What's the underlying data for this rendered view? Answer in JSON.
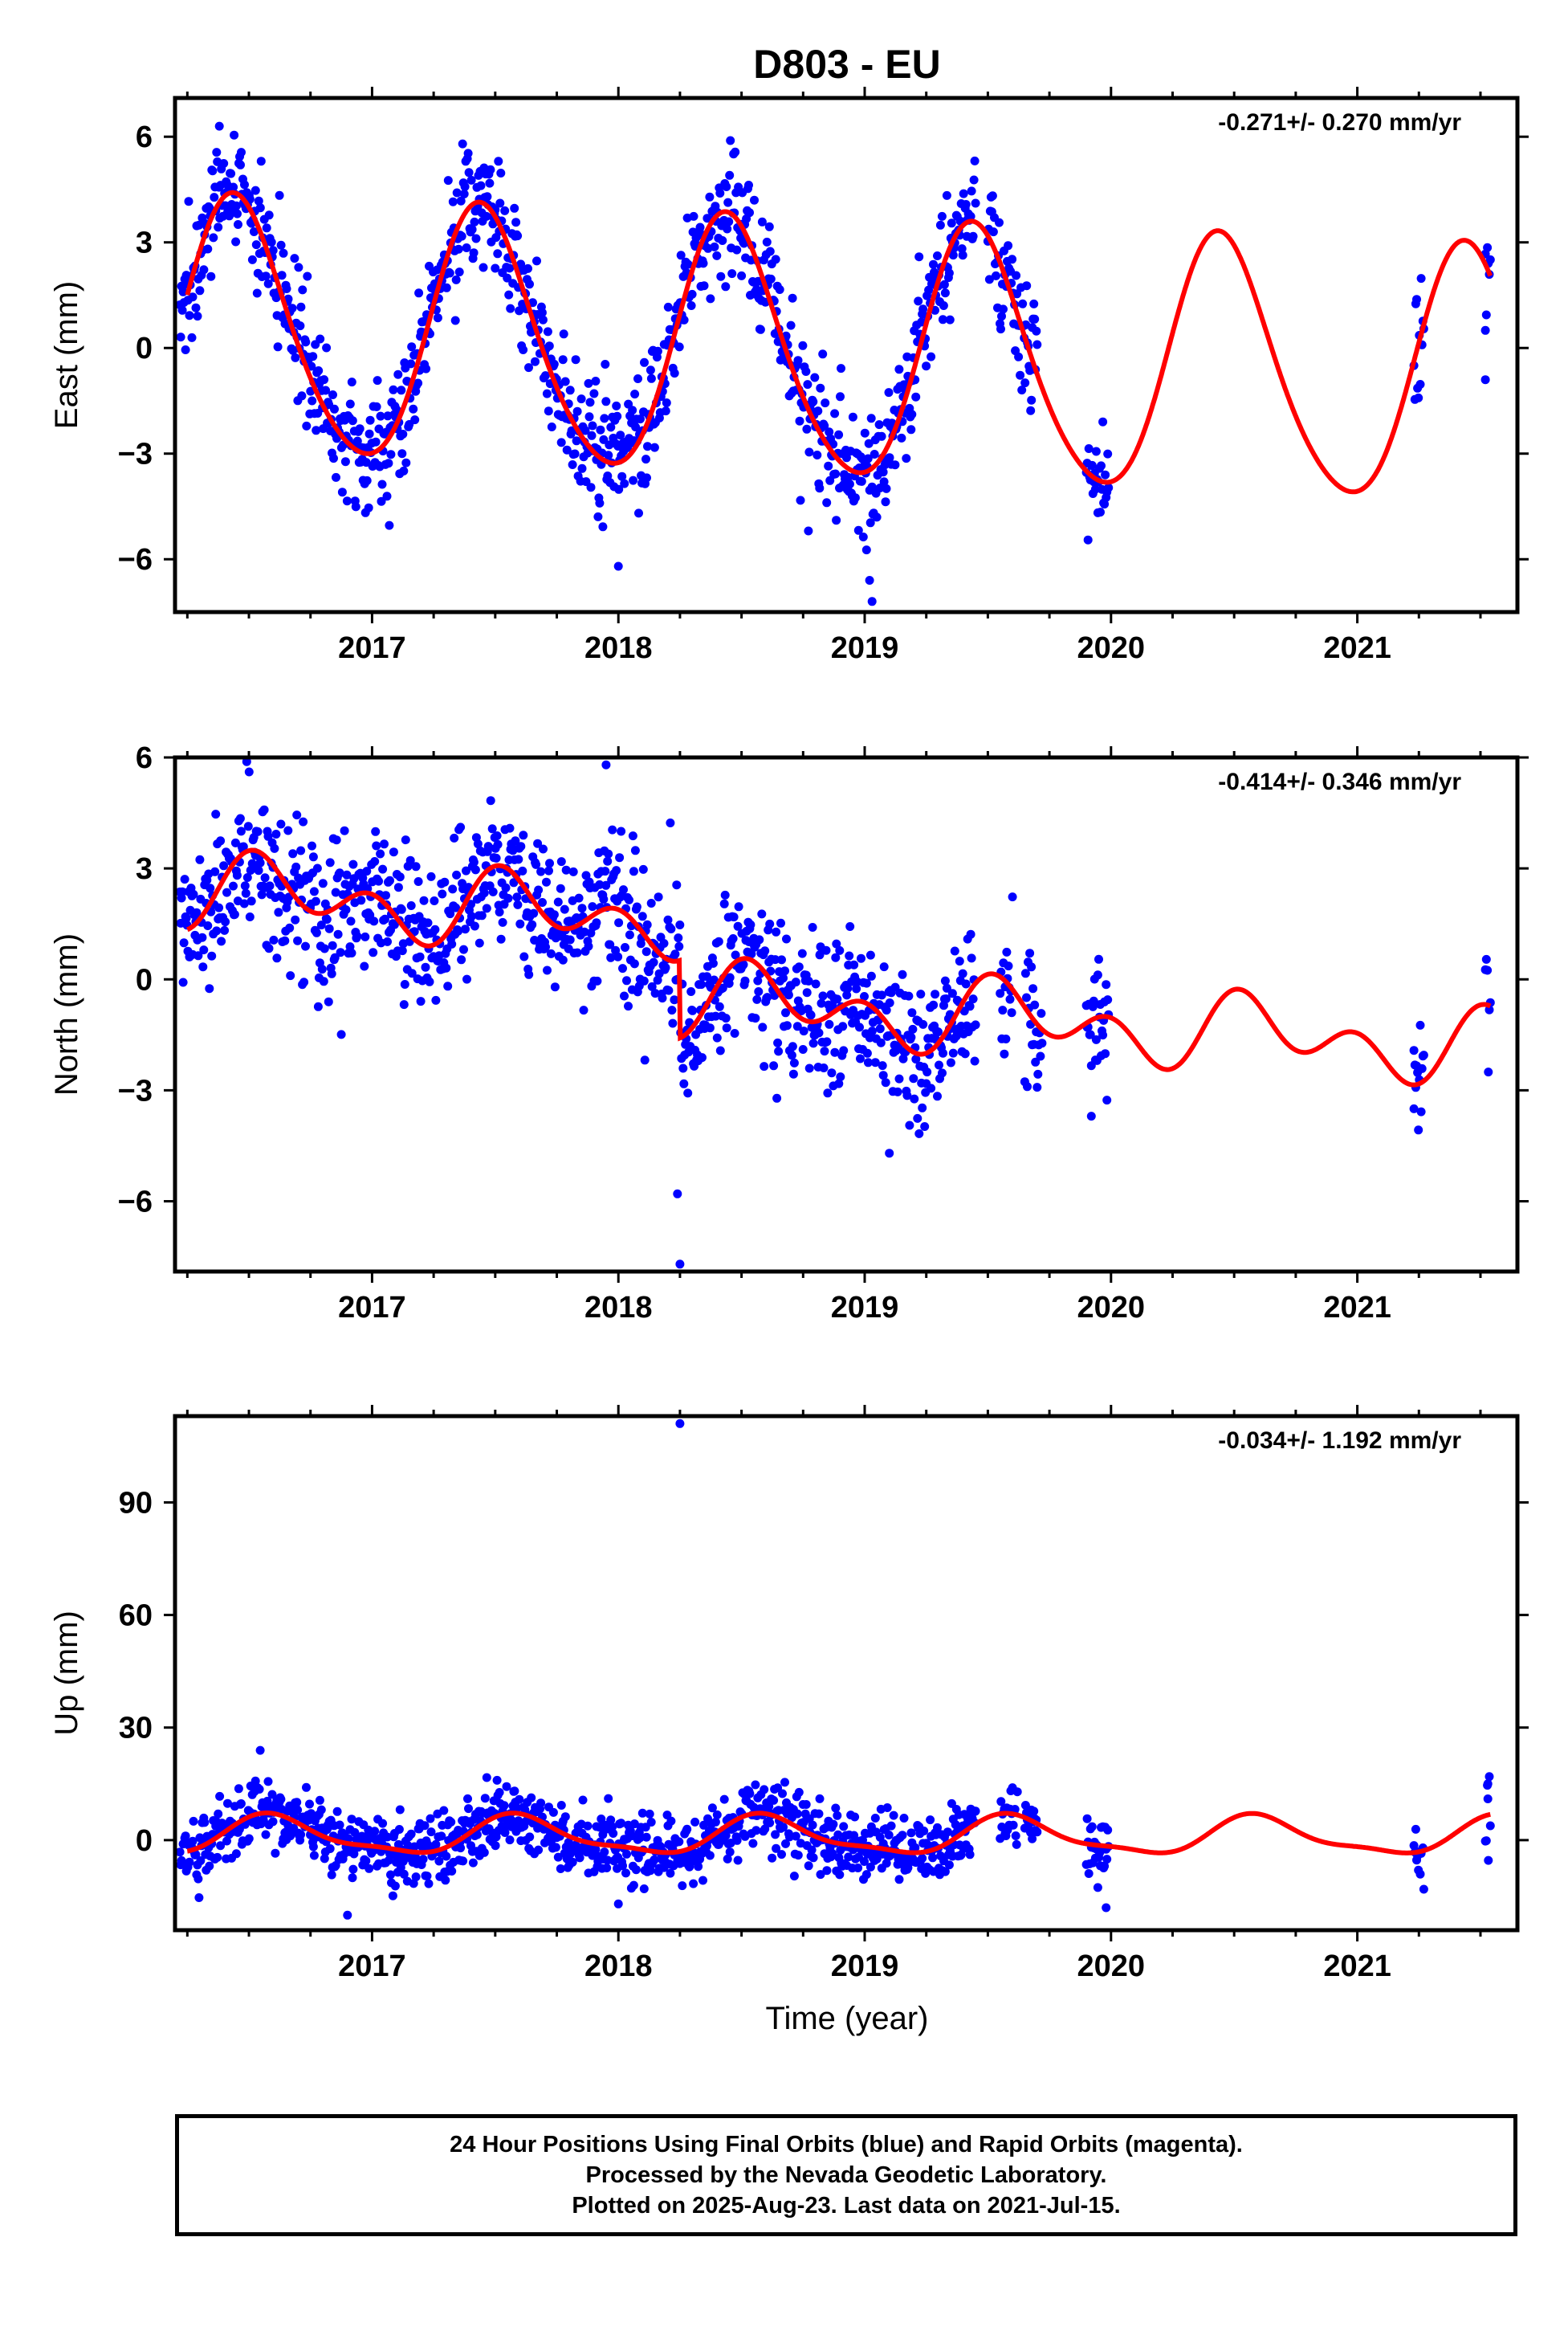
{
  "title": "D803 - EU",
  "xlabel": "Time (year)",
  "footer": {
    "line1": "24 Hour Positions Using Final Orbits (blue) and Rapid Orbits (magenta).",
    "line2": "Processed by the Nevada Geodetic Laboratory.",
    "line3": "Plotted on 2025-Aug-23. Last data on 2021-Jul-15."
  },
  "colors": {
    "points": "#0000ff",
    "model": "#ff0000",
    "axes": "#000000"
  },
  "chart_data": [
    {
      "type": "scatter",
      "ylabel": "East (mm)",
      "rate": "-0.271+/- 0.270 mm/yr",
      "xlim": [
        2016.2,
        2021.65
      ],
      "ylim": [
        -7.5,
        7.1
      ],
      "xticks": [
        2017,
        2018,
        2019,
        2020,
        2021
      ],
      "yticks": [
        6,
        3,
        0,
        -3,
        -6
      ],
      "data_segments": [
        [
          2016.22,
          2017.5
        ],
        [
          2017.5,
          2018.5
        ],
        [
          2018.5,
          2019.45
        ],
        [
          2019.5,
          2019.7
        ],
        [
          2019.9,
          2019.99
        ],
        [
          2021.23,
          2021.27
        ],
        [
          2021.52,
          2021.54
        ]
      ],
      "model": {
        "offset": -0.2,
        "trend": -0.271,
        "annual_amp": 3.6,
        "annual_peak": 2016.45,
        "semi_amp": 0.4,
        "semi_peak": 2016.4
      },
      "scatter_sd": 0.9,
      "outliers": [
        [
          2018.0,
          -6.2
        ],
        [
          2019.03,
          -7.2
        ],
        [
          2019.02,
          -6.6
        ],
        [
          2021.52,
          -0.9
        ],
        [
          2021.52,
          0.5
        ],
        [
          2016.38,
          6.3
        ]
      ]
    },
    {
      "type": "scatter",
      "ylabel": "North (mm)",
      "rate": "-0.414+/- 0.346 mm/yr",
      "xlim": [
        2016.2,
        2021.65
      ],
      "ylim": [
        -7.9,
        6.0
      ],
      "xticks": [
        2017,
        2018,
        2019,
        2020,
        2021
      ],
      "yticks": [
        6,
        3,
        0,
        -3,
        -6
      ],
      "data_segments": [
        [
          2016.22,
          2019.45
        ],
        [
          2019.55,
          2019.6
        ],
        [
          2019.65,
          2019.72
        ],
        [
          2019.9,
          2019.99
        ],
        [
          2021.23,
          2021.27
        ],
        [
          2021.52,
          2021.54
        ]
      ],
      "model": {
        "offset": 0.2,
        "trend": -0.414,
        "annual_amp": 0.6,
        "annual_peak": 2016.6,
        "semi_amp": 0.7,
        "semi_peak": 2016.5
      },
      "step": {
        "at": 2018.25,
        "before": 1.1,
        "after": -1.0
      },
      "scatter_sd": 1.0,
      "outliers": [
        [
          2018.25,
          -7.7
        ],
        [
          2018.24,
          -5.8
        ],
        [
          2017.95,
          5.8
        ],
        [
          2019.92,
          -3.7
        ],
        [
          2021.23,
          -3.5
        ],
        [
          2019.1,
          -4.7
        ]
      ]
    },
    {
      "type": "scatter",
      "ylabel": "Up (mm)",
      "rate": "-0.034+/- 1.192 mm/yr",
      "xlim": [
        2016.2,
        2021.65
      ],
      "ylim": [
        -24,
        113
      ],
      "xticks": [
        2017,
        2018,
        2019,
        2020,
        2021
      ],
      "yticks": [
        90,
        60,
        30,
        0
      ],
      "data_segments": [
        [
          2016.22,
          2019.45
        ],
        [
          2019.55,
          2019.62
        ],
        [
          2019.65,
          2019.7
        ],
        [
          2019.9,
          2019.99
        ],
        [
          2021.23,
          2021.27
        ],
        [
          2021.52,
          2021.54
        ]
      ],
      "model": {
        "offset": 1.0,
        "trend": -0.034,
        "annual_amp": 4.8,
        "annual_peak": 2016.6,
        "semi_amp": 1.5,
        "semi_peak": 2016.55
      },
      "scatter_sd": 4.5,
      "outliers": [
        [
          2018.25,
          111
        ],
        [
          2021.53,
          15
        ],
        [
          2021.53,
          11
        ],
        [
          2019.98,
          -18
        ],
        [
          2016.9,
          -20
        ],
        [
          2018.0,
          -17
        ]
      ]
    }
  ]
}
